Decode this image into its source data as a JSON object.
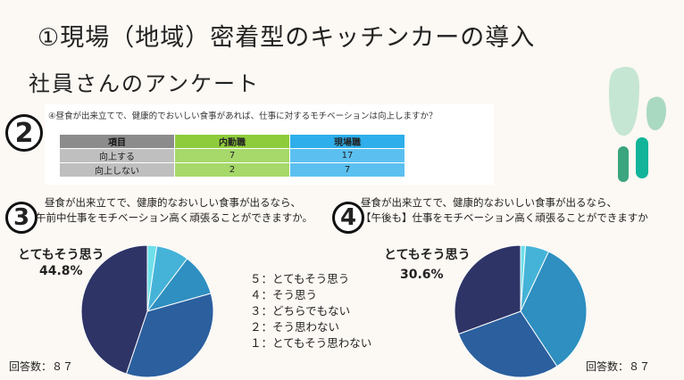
{
  "title": "①現場（地域）密着型のキッチンカーの導入",
  "subtitle": "社員さんのアンケート",
  "q2": {
    "number": "2",
    "question": "④昼食が出来立てで、健康的でおいしい食事があれば、仕事に対するモチベーションは向上しますか？",
    "headers": [
      "項目",
      "内勤職",
      "現場職"
    ],
    "rows": [
      [
        "向上する",
        "7",
        "17"
      ],
      [
        "向上しない",
        "2",
        "7"
      ]
    ]
  },
  "q3": {
    "number": "3",
    "question_line1": "昼食が出来立てで、健康的なおいしい食事が出るなら、",
    "question_line2": "午前中仕事をモチベーション高く頑張ることができますか。",
    "top_label": "とてもそう思う",
    "top_pct": "44.8%",
    "respondents": "回答数：８７"
  },
  "q4": {
    "number": "4",
    "question_line1": "昼食が出来立てで、健康的なおいしい食事が出るなら、",
    "question_line2": "【午後も】仕事をモチベーション高く頑張ることができますか",
    "top_label": "とてもそう思う",
    "top_pct": "30.6%",
    "respondents": "回答数：８７"
  },
  "legend": [
    "５：とてもそう思う",
    "４：そう思う",
    "３：どちらでもない",
    "２：そう思わない",
    "１：とてもそう思わない"
  ],
  "chart_data": [
    {
      "type": "pie",
      "labels": [
        "１：とてもそう思わない",
        "２：そう思わない",
        "３：どちらでもない",
        "４：そう思う",
        "５：とてもそう思う"
      ],
      "values": [
        2.3,
        8.0,
        10.3,
        34.5,
        44.8
      ],
      "colors": [
        "#6ee0ea",
        "#45b3d8",
        "#2e8fc0",
        "#2b5f9e",
        "#2e3466"
      ]
    },
    {
      "type": "pie",
      "labels": [
        "１：とてもそう思わない",
        "２：そう思わない",
        "３：どちらでもない",
        "４：そう思う",
        "５：とてもそう思う"
      ],
      "values": [
        1.2,
        5.8,
        33.7,
        28.7,
        30.6
      ],
      "colors": [
        "#6ee0ea",
        "#45b3d8",
        "#2e8fc0",
        "#2b5f9e",
        "#2e3466"
      ]
    }
  ],
  "colors": {
    "background": "#fcf8f3",
    "deco_light": "#c6e6d4",
    "deco_mid": "#7cc7a4",
    "deco_teal": "#12a98e"
  }
}
